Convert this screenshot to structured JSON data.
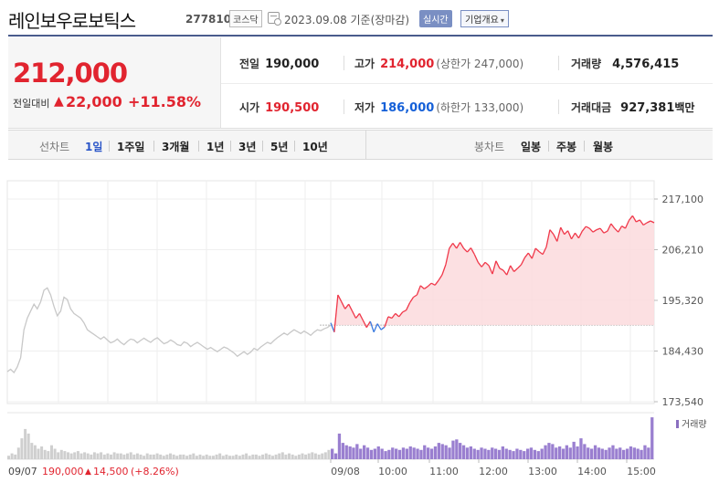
{
  "header": {
    "company_name": "레인보우로보틱스",
    "code": "277810",
    "market": "코스닥",
    "date": "2023.09.08  기준(장마감)",
    "realtime_label": "실시간",
    "corp_info_label": "기업개요"
  },
  "price": {
    "current": "212,000",
    "compare_label": "전일대비",
    "change": "22,000",
    "change_pct": "+11.58%"
  },
  "stats": {
    "prev_label": "전일",
    "prev_value": "190,000",
    "high_label": "고가",
    "high_value": "214,000",
    "upper_limit": "(상한가 247,000)",
    "volume_label": "거래량",
    "volume_value": "4,576,415",
    "open_label": "시가",
    "open_value": "190,500",
    "low_label": "저가",
    "low_value": "186,000",
    "lower_limit": "(하한가 133,000)",
    "amount_label": "거래대금",
    "amount_value": "927,381",
    "amount_unit": "백만"
  },
  "tabs": {
    "line_chart_label": "선차트",
    "line_tabs": [
      "1일",
      "1주일",
      "3개월",
      "1년",
      "3년",
      "5년",
      "10년"
    ],
    "active_tab": "1일",
    "candle_label": "봉차트",
    "candle_tabs": [
      "일봉",
      "주봉",
      "월봉"
    ]
  },
  "chart_data": {
    "type": "line",
    "y_ticks": [
      "217,100",
      "206,210",
      "195,320",
      "184,430",
      "173,540"
    ],
    "ylim": [
      173540,
      217100
    ],
    "x_ticks": [
      "09/08",
      "10:00",
      "11:00",
      "12:00",
      "13:00",
      "14:00",
      "15:00"
    ],
    "prev_day_label": "09/07",
    "prev_close": 190000,
    "volume_label": "거래량",
    "prev_day_summary": {
      "close": "190,000",
      "change": "14,500",
      "pct": "(+8.26%)"
    },
    "series": [
      {
        "day": "09/07",
        "values": [
          180000,
          180500,
          179800,
          181000,
          183000,
          189000,
          191500,
          193000,
          194500,
          193500,
          195000,
          197500,
          198000,
          196500,
          194000,
          192000,
          193000,
          196000,
          195500,
          193500,
          192500,
          192000,
          191500,
          190500,
          189000,
          188500,
          188000,
          187500,
          187000,
          187500,
          186800,
          186200,
          186500,
          187000,
          186300,
          185800,
          186500,
          187000,
          186800,
          186200,
          186700,
          187200,
          186700,
          186300,
          186900,
          187300,
          186600,
          186000,
          186300,
          186800,
          186400,
          185800,
          185600,
          186400,
          186100,
          185400,
          185900,
          186300,
          185800,
          185300,
          184800,
          185200,
          184700,
          184300,
          184800,
          185300,
          185000,
          184500,
          184000,
          183300,
          183800,
          184300,
          183700,
          184200,
          185000,
          184600,
          185300,
          185800,
          186300,
          186000,
          186700,
          187300,
          187800,
          188300,
          187900,
          188500,
          189000,
          188600,
          188200,
          188700,
          188300,
          187800,
          188500,
          189000,
          188800,
          189200,
          189500,
          190000
        ]
      },
      {
        "day": "09/08",
        "values": [
          190500,
          188500,
          196500,
          195000,
          193500,
          194500,
          193000,
          191500,
          192500,
          191000,
          189500,
          190800,
          188500,
          190300,
          189000,
          189600,
          191800,
          191500,
          192500,
          191800,
          192800,
          193200,
          194800,
          196000,
          196500,
          198500,
          197800,
          198300,
          199000,
          198600,
          199600,
          200800,
          203000,
          206500,
          207600,
          206500,
          207800,
          206500,
          205700,
          206600,
          205200,
          203500,
          202500,
          203500,
          202800,
          201000,
          203800,
          202200,
          201800,
          200800,
          202800,
          201500,
          202200,
          203000,
          204500,
          205500,
          204300,
          206500,
          205800,
          205200,
          206800,
          210500,
          209500,
          208000,
          211000,
          209500,
          210300,
          208500,
          209800,
          208700,
          210200,
          211200,
          210800,
          210000,
          210500,
          210800,
          209800,
          210200,
          211800,
          210800,
          210000,
          211300,
          210800,
          212500,
          213500,
          212200,
          212600,
          211500,
          212000,
          212400,
          212000
        ]
      }
    ],
    "volume": {
      "prev_day": [
        3,
        5,
        4,
        10,
        18,
        26,
        22,
        14,
        12,
        9,
        11,
        8,
        7,
        12,
        9,
        6,
        8,
        7,
        6,
        5,
        6,
        7,
        5,
        6,
        5,
        4,
        6,
        5,
        6,
        4,
        5,
        4,
        6,
        5,
        5,
        4,
        5,
        6,
        4,
        5,
        4,
        3,
        5,
        4,
        4,
        5,
        4,
        3,
        4,
        5,
        4,
        3,
        4,
        4,
        3,
        4,
        5,
        3,
        4,
        3,
        4,
        3,
        3,
        4,
        5,
        3,
        4,
        3,
        3,
        4,
        3,
        4,
        5,
        3,
        4,
        4,
        3,
        4,
        5,
        4,
        3,
        4,
        5,
        6,
        4,
        5,
        4,
        3,
        4,
        5,
        4,
        5,
        6,
        5,
        4,
        5,
        6,
        8
      ],
      "today": [
        9,
        5,
        22,
        14,
        12,
        11,
        10,
        13,
        9,
        12,
        10,
        8,
        9,
        11,
        9,
        7,
        8,
        10,
        9,
        8,
        10,
        9,
        11,
        10,
        9,
        8,
        12,
        10,
        9,
        11,
        14,
        13,
        12,
        10,
        16,
        17,
        14,
        12,
        10,
        11,
        9,
        8,
        10,
        9,
        8,
        10,
        9,
        8,
        11,
        9,
        8,
        7,
        9,
        8,
        7,
        9,
        10,
        8,
        7,
        9,
        12,
        14,
        13,
        10,
        11,
        9,
        12,
        10,
        15,
        11,
        18,
        13,
        10,
        9,
        12,
        10,
        9,
        8,
        10,
        12,
        9,
        10,
        8,
        9,
        11,
        10,
        9,
        8,
        12,
        10,
        36
      ]
    }
  }
}
